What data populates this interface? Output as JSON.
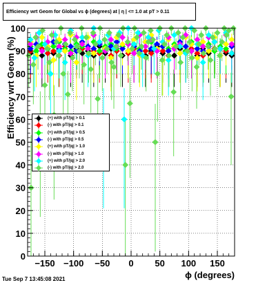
{
  "title": "Efficiency wrt Geom for Global vs ϕ (degrees) at |  η | <= 1.0 at pT > 0.11",
  "timestamp": "Tue Sep  7 13:45:08 2021",
  "chart_data": {
    "type": "scatter",
    "xlabel": "ϕ (degrees)",
    "ylabel": "Efficiency wrt Geom (%)",
    "xlim": [
      -180,
      180
    ],
    "ylim": [
      0,
      100
    ],
    "x_ticks": [
      -150,
      -100,
      -50,
      0,
      50,
      100,
      150
    ],
    "x_tick_labels": [
      "−150",
      "−100",
      "−50",
      "0",
      "50",
      "100",
      "150"
    ],
    "y_ticks": [
      0,
      10,
      20,
      30,
      40,
      50,
      60,
      70,
      80,
      90,
      100
    ],
    "y_tick_labels": [
      "0",
      "10",
      "20",
      "30",
      "40",
      "50",
      "60",
      "70",
      "80",
      "90",
      "100"
    ],
    "grid": true,
    "legend_position": "middle-left",
    "series": [
      {
        "name": "(+) with pT/|q| > 0.1",
        "color": "#000000",
        "marker": "diamond",
        "x": [
          -175,
          -165,
          -155,
          -145,
          -135,
          -125,
          -115,
          -105,
          -95,
          -85,
          -75,
          -65,
          -55,
          -45,
          -35,
          -25,
          -15,
          -5,
          5,
          15,
          25,
          35,
          45,
          55,
          65,
          75,
          85,
          95,
          105,
          115,
          125,
          135,
          145,
          155,
          165,
          175
        ],
        "y": [
          89,
          90,
          88,
          91,
          89,
          92,
          90,
          88,
          91,
          89,
          90,
          88,
          92,
          89,
          91,
          90,
          88,
          90,
          89,
          91,
          88,
          90,
          92,
          89,
          90,
          88,
          91,
          89,
          90,
          88,
          91,
          89,
          90,
          91,
          89,
          88
        ]
      },
      {
        "name": "(-) with pT/|q| > 0.1",
        "color": "#ff0000",
        "marker": "diamond",
        "x": [
          -175,
          -165,
          -155,
          -145,
          -135,
          -125,
          -115,
          -105,
          -95,
          -85,
          -75,
          -65,
          -55,
          -45,
          -35,
          -25,
          -15,
          -5,
          5,
          15,
          25,
          35,
          45,
          55,
          65,
          75,
          85,
          95,
          105,
          115,
          125,
          135,
          145,
          155,
          165,
          175
        ],
        "y": [
          90,
          88,
          91,
          89,
          90,
          88,
          92,
          89,
          90,
          91,
          88,
          90,
          89,
          91,
          88,
          90,
          92,
          89,
          91,
          88,
          90,
          89,
          91,
          90,
          88,
          92,
          89,
          90,
          91,
          89,
          88,
          90,
          91,
          88,
          90,
          89
        ]
      },
      {
        "name": "(+) with pT/|q| > 0.5",
        "color": "#00ff00",
        "marker": "diamond",
        "x": [
          -175,
          -165,
          -155,
          -145,
          -135,
          -125,
          -115,
          -105,
          -95,
          -85,
          -75,
          -65,
          -55,
          -45,
          -35,
          -25,
          -15,
          -5,
          5,
          15,
          25,
          35,
          45,
          55,
          65,
          75,
          85,
          95,
          105,
          115,
          125,
          135,
          145,
          155,
          165,
          175
        ],
        "y": [
          92,
          90,
          93,
          91,
          92,
          94,
          91,
          90,
          93,
          92,
          91,
          94,
          90,
          92,
          93,
          91,
          92,
          90,
          93,
          91,
          92,
          94,
          90,
          92,
          91,
          93,
          92,
          90,
          94,
          91,
          92,
          93,
          90,
          92,
          91,
          93
        ]
      },
      {
        "name": "(-) with pT/|q| > 0.5",
        "color": "#0000ff",
        "marker": "diamond",
        "x": [
          -175,
          -165,
          -155,
          -145,
          -135,
          -125,
          -115,
          -105,
          -95,
          -85,
          -75,
          -65,
          -55,
          -45,
          -35,
          -25,
          -15,
          -5,
          5,
          15,
          25,
          35,
          45,
          55,
          65,
          75,
          85,
          95,
          105,
          115,
          125,
          135,
          145,
          155,
          165,
          175
        ],
        "y": [
          91,
          93,
          90,
          92,
          94,
          91,
          93,
          92,
          90,
          94,
          92,
          91,
          93,
          90,
          92,
          94,
          91,
          93,
          92,
          90,
          94,
          91,
          93,
          92,
          90,
          91,
          94,
          92,
          93,
          91,
          90,
          92,
          94,
          91,
          93,
          92
        ]
      },
      {
        "name": "(+) with pT/|q| > 1.0",
        "color": "#ffff00",
        "marker": "diamond",
        "x": [
          -175,
          -165,
          -155,
          -145,
          -135,
          -125,
          -115,
          -105,
          -95,
          -85,
          -75,
          -65,
          -55,
          -45,
          -35,
          -25,
          -15,
          -5,
          5,
          15,
          25,
          35,
          45,
          55,
          65,
          75,
          85,
          95,
          105,
          115,
          125,
          135,
          145,
          155,
          165,
          175
        ],
        "y": [
          94,
          88,
          96,
          92,
          86,
          95,
          90,
          97,
          85,
          93,
          96,
          89,
          94,
          91,
          87,
          96,
          93,
          90,
          95,
          88,
          94,
          97,
          91,
          86,
          95,
          92,
          89,
          96,
          93,
          87,
          94,
          90,
          96,
          88,
          93,
          95
        ]
      },
      {
        "name": "(-) with pT/|q| > 1.0",
        "color": "#ff00ff",
        "marker": "diamond",
        "x": [
          -175,
          -165,
          -155,
          -145,
          -135,
          -125,
          -115,
          -105,
          -95,
          -85,
          -75,
          -65,
          -55,
          -45,
          -35,
          -25,
          -15,
          -5,
          5,
          15,
          25,
          35,
          45,
          55,
          65,
          75,
          85,
          95,
          105,
          115,
          125,
          135,
          145,
          155,
          165,
          175
        ],
        "y": [
          93,
          96,
          90,
          94,
          97,
          92,
          95,
          89,
          96,
          93,
          91,
          97,
          94,
          90,
          95,
          92,
          96,
          93,
          89,
          97,
          92,
          95,
          90,
          94,
          96,
          91,
          93,
          97,
          90,
          95,
          92,
          96,
          94,
          91,
          97,
          93
        ]
      },
      {
        "name": "(+) with pT/|q| > 2.0",
        "color": "#00ffff",
        "marker": "diamond",
        "x": [
          -175,
          -168,
          -160,
          -150,
          -140,
          -132,
          -125,
          -115,
          -105,
          -95,
          -85,
          -75,
          -65,
          -55,
          -48,
          -40,
          -30,
          -20,
          -12,
          -5,
          5,
          12,
          20,
          30,
          40,
          48,
          55,
          65,
          75,
          85,
          95,
          105,
          115,
          125,
          135,
          145,
          155,
          165,
          175
        ],
        "y": [
          95,
          87,
          98,
          93,
          80,
          97,
          90,
          85,
          99,
          92,
          96,
          88,
          100,
          94,
          60,
          97,
          91,
          98,
          60,
          100,
          93,
          98,
          88,
          96,
          91,
          99,
          94,
          86,
          97,
          92,
          89,
          100,
          93,
          85,
          97,
          94,
          91,
          98,
          89
        ]
      },
      {
        "name": "(-) with pT/|q| > 2.0",
        "color": "#66dd55",
        "marker": "diamond",
        "x": [
          -178,
          -174,
          -170,
          -166,
          -162,
          -158,
          -154,
          -150,
          -146,
          -142,
          -138,
          -134,
          -130,
          -126,
          -122,
          -118,
          -114,
          -110,
          -106,
          -102,
          -98,
          -94,
          -90,
          -86,
          -82,
          -78,
          -74,
          -70,
          -66,
          -62,
          -58,
          -54,
          -50,
          -46,
          -42,
          -38,
          -34,
          -30,
          -26,
          -22,
          -18,
          -14,
          -10,
          -6,
          -2,
          2,
          6,
          10,
          14,
          18,
          22,
          26,
          30,
          34,
          38,
          42,
          46,
          50,
          54,
          58,
          62,
          66,
          70,
          74,
          78,
          82,
          86,
          90,
          94,
          98,
          102,
          106,
          110,
          114,
          118,
          122,
          126,
          130,
          134,
          138,
          142,
          146,
          150,
          154,
          158,
          162,
          166,
          170,
          174,
          178
        ],
        "y": [
          88,
          30,
          84,
          96,
          92,
          58,
          99,
          75,
          91,
          85,
          97,
          62,
          94,
          88,
          100,
          80,
          93,
          71,
          98,
          87,
          95,
          92,
          90,
          100,
          84,
          96,
          89,
          82,
          98,
          93,
          69,
          100,
          87,
          95,
          91,
          98,
          85,
          83,
          92,
          97,
          88,
          100,
          40,
          94,
          67,
          91,
          100,
          96,
          89,
          92,
          98,
          87,
          94,
          99,
          95,
          50,
          80,
          100,
          86,
          93,
          97,
          88,
          100,
          72,
          92,
          98,
          85,
          96,
          100,
          90,
          94,
          87,
          99,
          83,
          93,
          97,
          89,
          100,
          92,
          86,
          96,
          91,
          98,
          88,
          94,
          100,
          97,
          99,
          70,
          100
        ]
      }
    ]
  }
}
